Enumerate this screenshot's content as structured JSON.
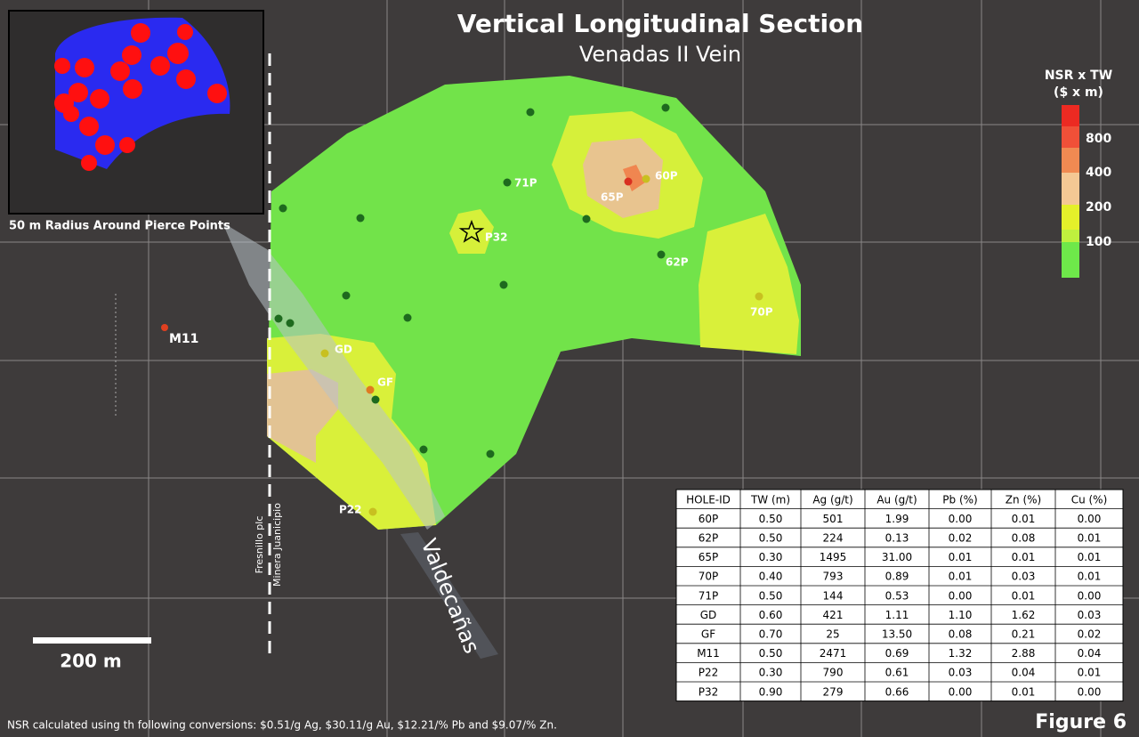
{
  "header": {
    "title": "Vertical Longitudinal Section",
    "subtitle": "Venadas II Vein"
  },
  "inset": {
    "caption": "50 m Radius Around Pierce Points"
  },
  "legend": {
    "title": [
      "NSR x TW",
      "($ x m)"
    ],
    "labels": [
      "800",
      "400",
      "200",
      "100"
    ]
  },
  "holes": [
    "71P",
    "60P",
    "65P",
    "P32",
    "62P",
    "70P",
    "GD",
    "GF",
    "P22",
    "M11"
  ],
  "map_labels": {
    "fault": "Valdecañas",
    "left": "Fresnillo plc",
    "right": "Minera Juanicipio",
    "scale": "200 m"
  },
  "table": {
    "columns": [
      "HOLE-ID",
      "TW (m)",
      "Ag (g/t)",
      "Au (g/t)",
      "Pb (%)",
      "Zn (%)",
      "Cu (%)"
    ],
    "rows": [
      [
        "60P",
        "0.50",
        "501",
        "1.99",
        "0.00",
        "0.01",
        "0.00"
      ],
      [
        "62P",
        "0.50",
        "224",
        "0.13",
        "0.02",
        "0.08",
        "0.01"
      ],
      [
        "65P",
        "0.30",
        "1495",
        "31.00",
        "0.01",
        "0.01",
        "0.01"
      ],
      [
        "70P",
        "0.40",
        "793",
        "0.89",
        "0.01",
        "0.03",
        "0.01"
      ],
      [
        "71P",
        "0.50",
        "144",
        "0.53",
        "0.00",
        "0.01",
        "0.00"
      ],
      [
        "GD",
        "0.60",
        "421",
        "1.11",
        "1.10",
        "1.62",
        "0.03"
      ],
      [
        "GF",
        "0.70",
        "25",
        "13.50",
        "0.08",
        "0.21",
        "0.02"
      ],
      [
        "M11",
        "0.50",
        "2471",
        "0.69",
        "1.32",
        "2.88",
        "0.04"
      ],
      [
        "P22",
        "0.30",
        "790",
        "0.61",
        "0.03",
        "0.04",
        "0.01"
      ],
      [
        "P32",
        "0.90",
        "279",
        "0.66",
        "0.00",
        "0.01",
        "0.00"
      ]
    ]
  },
  "footnote": "NSR calculated using th following conversions: $0.51/g Ag, $30.11/g Au,  $12.21/% Pb and $9.07/% Zn.",
  "figure": "Figure 6"
}
